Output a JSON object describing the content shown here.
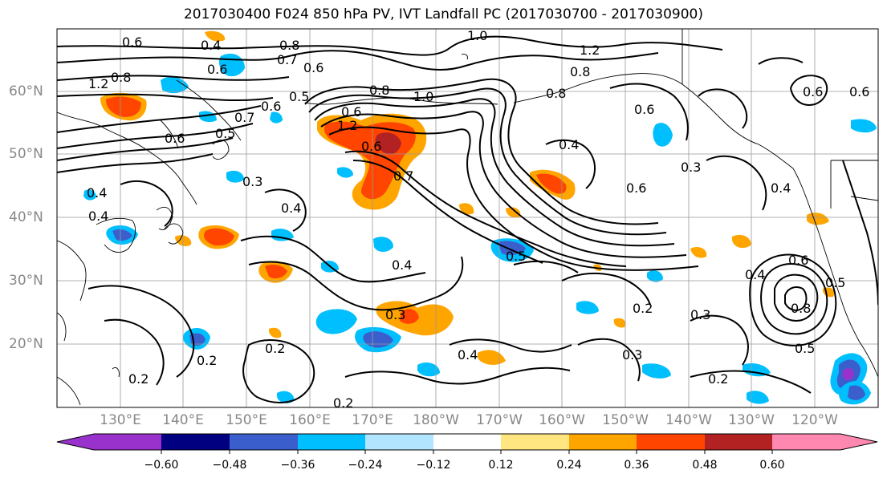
{
  "title": "2017030400 F024 850 hPa PV, IVT Landfall PC (2017030700 - 2017030900)",
  "map": {
    "lat_labels": [
      "60°N",
      "50°N",
      "40°N",
      "30°N",
      "20°N"
    ],
    "lon_labels": [
      "130°E",
      "140°E",
      "150°E",
      "160°E",
      "170°E",
      "180°W",
      "170°W",
      "160°W",
      "150°W",
      "140°W",
      "130°W",
      "120°W"
    ],
    "contour_labels": [
      "0.6",
      "0.4",
      "0.7",
      "0.8",
      "0.6",
      "1.0",
      "1.2",
      "0.8",
      "1.2",
      "0.8",
      "0.6",
      "0.5",
      "0.6",
      "0.7",
      "0.5",
      "0.6",
      "0.6",
      "0.8",
      "1.2",
      "1.0",
      "0.8",
      "0.6",
      "0.4",
      "0.6",
      "0.3",
      "0.4",
      "0.3",
      "0.4",
      "0.6",
      "0.7",
      "0.4",
      "0.5",
      "0.4",
      "0.3",
      "0.2",
      "0.2",
      "0.4",
      "0.2",
      "0.3",
      "0.2",
      "0.3",
      "0.2",
      "0.8",
      "0.4",
      "0.5",
      "0.6",
      "0.5",
      "0.2",
      "0.6",
      "0.6",
      "0.4"
    ],
    "colors": {
      "land_line": "#000000",
      "grid": "#999999",
      "contour": "#000000"
    }
  },
  "colorbar": {
    "ticks": [
      "−0.60",
      "−0.48",
      "−0.36",
      "−0.24",
      "−0.12",
      "0.12",
      "0.24",
      "0.36",
      "0.48",
      "0.60"
    ],
    "colors": [
      "#9932cc",
      "#000080",
      "#3a5fcd",
      "#00bfff",
      "#b2e5ff",
      "#ffffff",
      "#ffe680",
      "#ffa500",
      "#ff4500",
      "#b22222",
      "#ff88b0"
    ]
  }
}
